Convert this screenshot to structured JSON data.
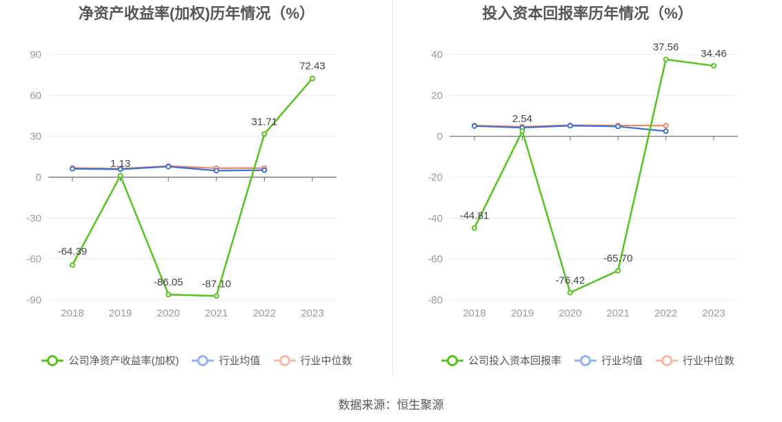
{
  "source_label": "数据来源：恒生聚源",
  "colors": {
    "company": "#52c41a",
    "industry_avg": "#3b6fd6",
    "industry_median": "#f08461"
  },
  "legend_colors": {
    "company": "#52c41a",
    "industry_avg": "#8fb2ef",
    "industry_median": "#f7b9a3"
  },
  "chart_data": [
    {
      "type": "line",
      "title": "净资产收益率(加权)历年情况（%）",
      "categories": [
        "2018",
        "2019",
        "2020",
        "2021",
        "2022",
        "2023"
      ],
      "ylim": [
        -90,
        90
      ],
      "yticks": [
        -90,
        -60,
        -30,
        0,
        30,
        60,
        90
      ],
      "ytick_labels": [
        "-90",
        "-60",
        "-30",
        "0",
        "30",
        "60",
        "90"
      ],
      "grid": true,
      "legend_position": "bottom",
      "series": [
        {
          "name": "公司净资产收益率(加权)",
          "key": "company",
          "values": [
            -64.39,
            1.13,
            -86.05,
            -87.1,
            31.71,
            72.43
          ],
          "labels": [
            "-64.39",
            "1.13",
            "-86.05",
            "-87.10",
            "31.71",
            "72.43"
          ]
        },
        {
          "name": "行业均值",
          "key": "industry_avg",
          "values": [
            6.2,
            5.8,
            7.8,
            4.8,
            5.2,
            null
          ]
        },
        {
          "name": "行业中位数",
          "key": "industry_median",
          "values": [
            6.8,
            6.3,
            8.2,
            6.6,
            6.7,
            null
          ]
        }
      ]
    },
    {
      "type": "line",
      "title": "投入资本回报率历年情况（%）",
      "categories": [
        "2018",
        "2019",
        "2020",
        "2021",
        "2022",
        "2023"
      ],
      "ylim": [
        -80,
        40
      ],
      "yticks": [
        -80,
        -60,
        -40,
        -20,
        0,
        20,
        40
      ],
      "ytick_labels": [
        "-80",
        "-60",
        "-40",
        "-20",
        "0",
        "20",
        "40"
      ],
      "grid": true,
      "legend_position": "bottom",
      "series": [
        {
          "name": "公司投入资本回报率",
          "key": "company",
          "values": [
            -44.81,
            2.54,
            -76.42,
            -65.7,
            37.56,
            34.46
          ],
          "labels": [
            "-44.81",
            "2.54",
            "-76.42",
            "-65.70",
            "37.56",
            "34.46"
          ]
        },
        {
          "name": "行业均值",
          "key": "industry_avg",
          "values": [
            5.0,
            4.2,
            5.2,
            4.8,
            2.5,
            null
          ]
        },
        {
          "name": "行业中位数",
          "key": "industry_median",
          "values": [
            5.3,
            4.7,
            5.4,
            5.3,
            5.2,
            null
          ]
        }
      ]
    }
  ]
}
